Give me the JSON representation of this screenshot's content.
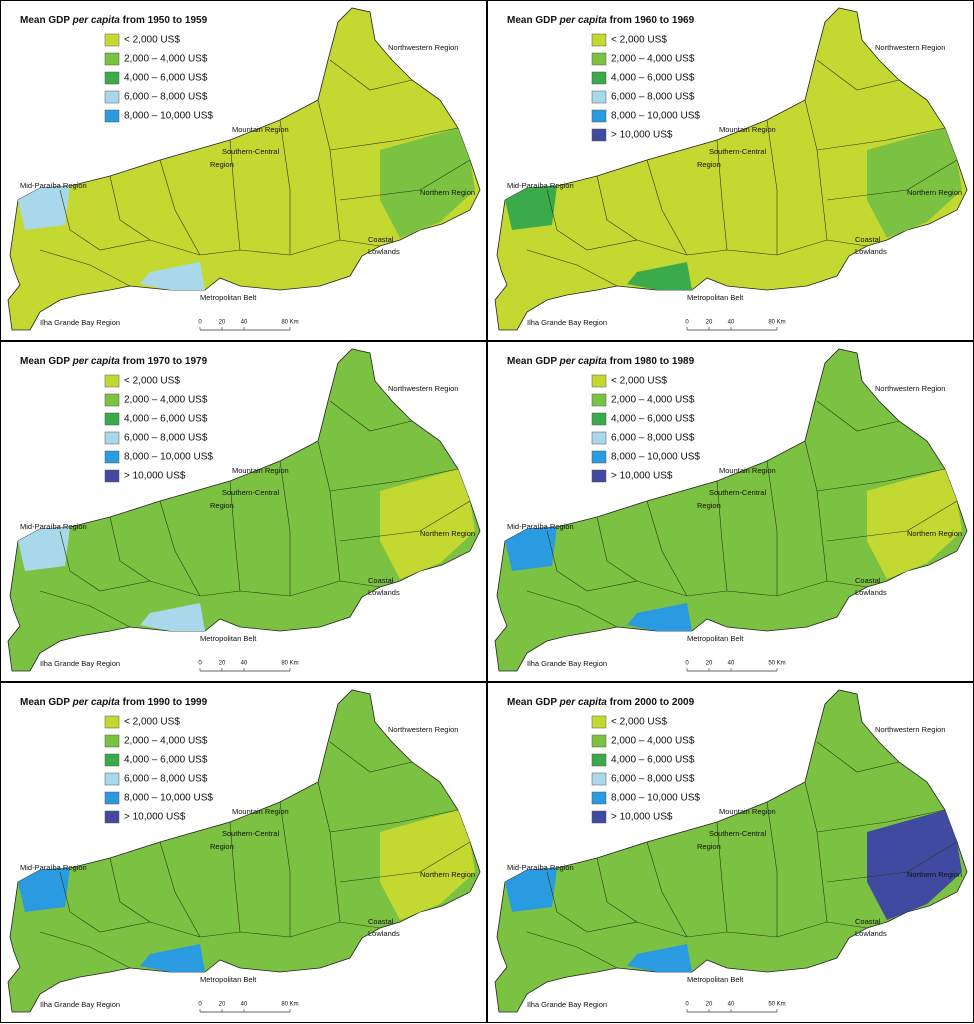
{
  "panels": [
    {
      "title": [
        "Mean GDP ",
        "per capita",
        " from 1950 to 1959"
      ],
      "legend": [
        {
          "label": "< 2,000 US$",
          "color": "#c3d932"
        },
        {
          "label": "2,000 – 4,000 US$",
          "color": "#7cc242"
        },
        {
          "label": "4,000 – 6,000 US$",
          "color": "#3aaa4a"
        },
        {
          "label": "6,000 – 8,000 US$",
          "color": "#a8d8ea"
        },
        {
          "label": "8,000 – 10,000 US$",
          "color": "#2a9be0"
        }
      ],
      "scale": [
        "0",
        "20",
        "40",
        "80 Km"
      ]
    },
    {
      "title": [
        "Mean GDP ",
        "per capita",
        " from 1960 to 1969"
      ],
      "legend": [
        {
          "label": "< 2,000 US$",
          "color": "#c3d932"
        },
        {
          "label": "2,000 – 4,000 US$",
          "color": "#7cc242"
        },
        {
          "label": "4,000 – 6,000 US$",
          "color": "#3aaa4a"
        },
        {
          "label": "6,000 – 8,000 US$",
          "color": "#a8d8ea"
        },
        {
          "label": "8,000 – 10,000 US$",
          "color": "#2a9be0"
        },
        {
          "label": "> 10,000 US$",
          "color": "#404aa0"
        }
      ],
      "scale": [
        "0",
        "20",
        "40",
        "80 Km"
      ]
    },
    {
      "title": [
        "Mean GDP ",
        "per capita",
        " from 1970 to 1979"
      ],
      "legend": [
        {
          "label": "< 2,000 US$",
          "color": "#c3d932"
        },
        {
          "label": "2,000 – 4,000 US$",
          "color": "#7cc242"
        },
        {
          "label": "4,000 – 6,000 US$",
          "color": "#3aaa4a"
        },
        {
          "label": "6,000 – 8,000 US$",
          "color": "#a8d8ea"
        },
        {
          "label": "8,000 – 10,000 US$",
          "color": "#2a9be0"
        },
        {
          "label": "> 10,000 US$",
          "color": "#404aa0"
        }
      ],
      "scale": [
        "0",
        "20",
        "40",
        "80 Km"
      ]
    },
    {
      "title": [
        "Mean GDP ",
        "per capita",
        " from 1980 to 1989"
      ],
      "legend": [
        {
          "label": "< 2,000 US$",
          "color": "#c3d932"
        },
        {
          "label": "2,000 – 4,000 US$",
          "color": "#7cc242"
        },
        {
          "label": "4,000 – 6,000 US$",
          "color": "#3aaa4a"
        },
        {
          "label": "6,000 – 8,000 US$",
          "color": "#a8d8ea"
        },
        {
          "label": "8,000 – 10,000 US$",
          "color": "#2a9be0"
        },
        {
          "label": "> 10,000 US$",
          "color": "#404aa0"
        }
      ],
      "scale": [
        "0",
        "20",
        "40",
        "50 Km"
      ]
    },
    {
      "title": [
        "Mean GDP ",
        "per capita",
        " from 1990 to 1999"
      ],
      "legend": [
        {
          "label": "< 2,000 US$",
          "color": "#c3d932"
        },
        {
          "label": "2,000 – 4,000 US$",
          "color": "#7cc242"
        },
        {
          "label": "4,000 – 6,000 US$",
          "color": "#3aaa4a"
        },
        {
          "label": "6,000 – 8,000 US$",
          "color": "#a8d8ea"
        },
        {
          "label": "8,000 – 10,000 US$",
          "color": "#2a9be0"
        },
        {
          "label": "> 10,000 US$",
          "color": "#404aa0"
        }
      ],
      "scale": [
        "0",
        "20",
        "40",
        "80 Km"
      ]
    },
    {
      "title": [
        "Mean GDP ",
        "per capita",
        " from 2000 to 2009"
      ],
      "legend": [
        {
          "label": "< 2,000 US$",
          "color": "#c3d932"
        },
        {
          "label": "2,000 – 4,000 US$",
          "color": "#7cc242"
        },
        {
          "label": "4,000 – 6,000 US$",
          "color": "#3aaa4a"
        },
        {
          "label": "6,000 – 8,000 US$",
          "color": "#a8d8ea"
        },
        {
          "label": "8,000 – 10,000 US$",
          "color": "#2a9be0"
        },
        {
          "label": "> 10,000 US$",
          "color": "#404aa0"
        }
      ],
      "scale": [
        "0",
        "20",
        "40",
        "50 Km"
      ]
    }
  ],
  "regions": [
    {
      "lines": [
        "Northwestern Region"
      ]
    },
    {
      "lines": [
        "Mountain Region"
      ]
    },
    {
      "lines": [
        "Southern-Central",
        "Region"
      ]
    },
    {
      "lines": [
        "Mid-Paraíba Region"
      ]
    },
    {
      "lines": [
        "Northern Region"
      ]
    },
    {
      "lines": [
        "Coastal",
        "Lowlands"
      ]
    },
    {
      "lines": [
        "Metropolitan Belt"
      ]
    },
    {
      "lines": [
        "Ilha Grande Bay Region"
      ]
    }
  ]
}
